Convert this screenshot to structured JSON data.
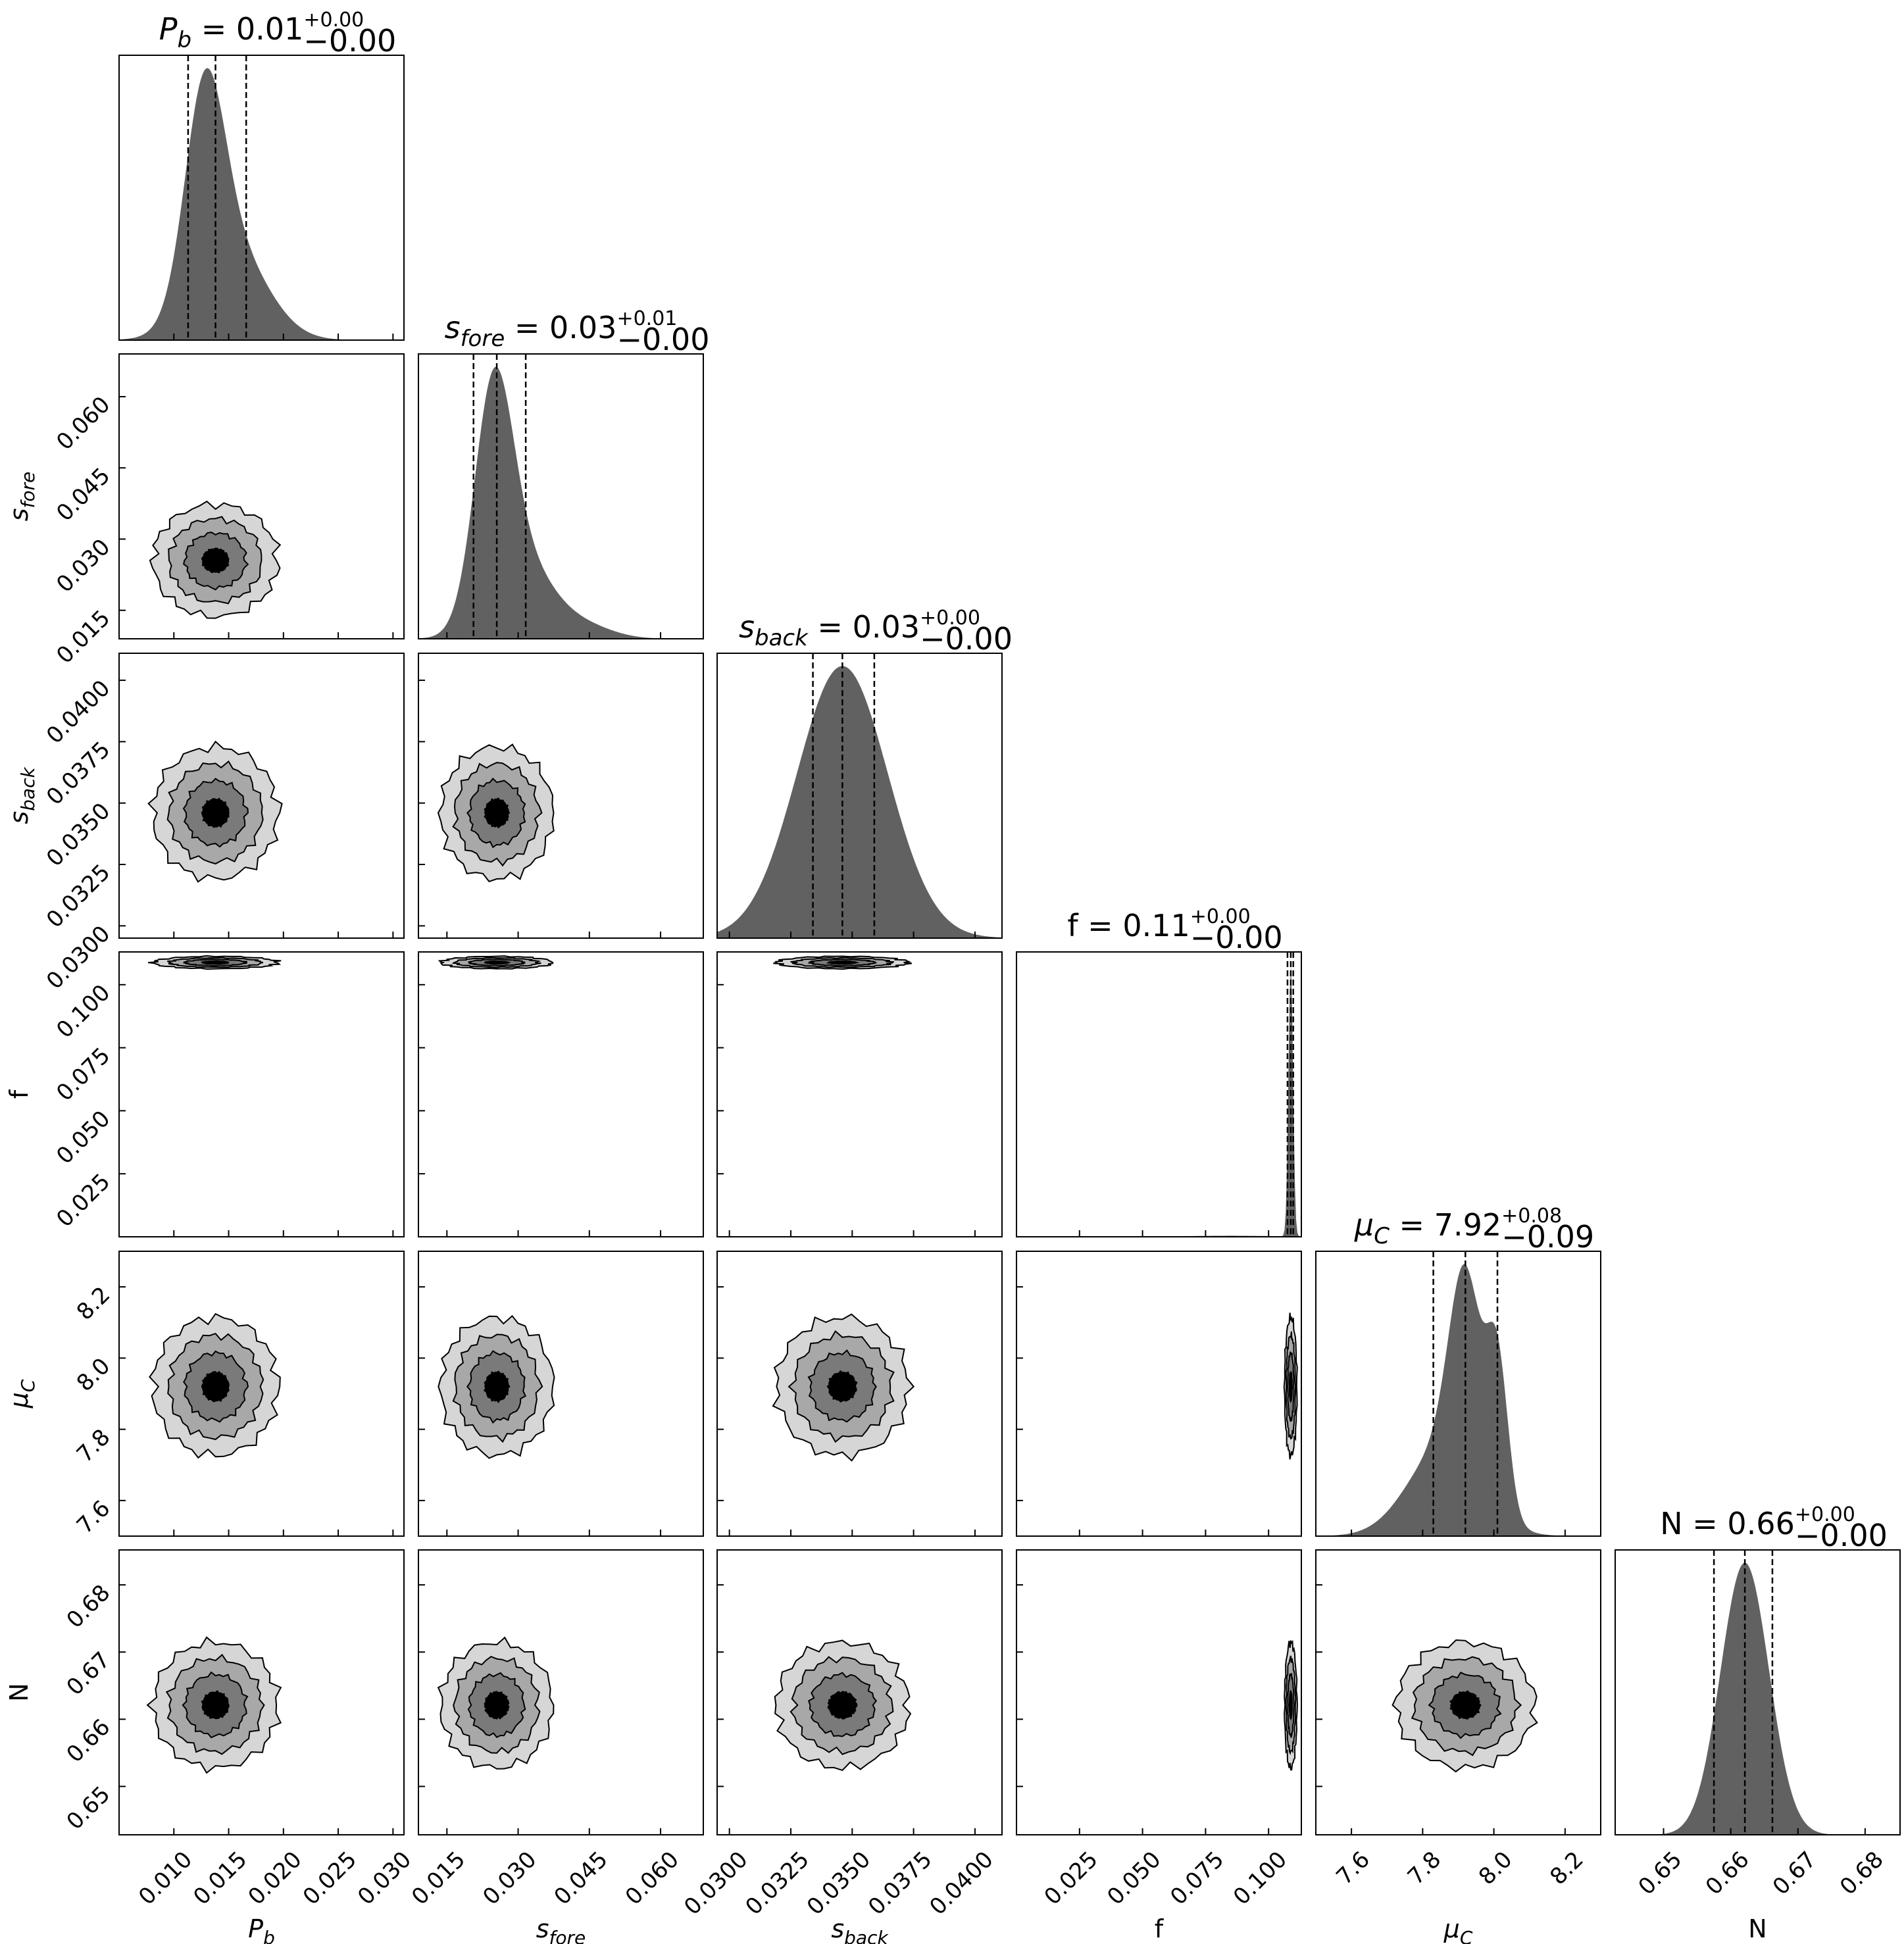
{
  "chart_data": {
    "type": "corner",
    "colors": {
      "hist_fill": "#616161",
      "contour_levels": [
        "#d6d6d6",
        "#a8a8a8",
        "#7a7a7a",
        "#000000"
      ],
      "quantile_line": "#000000"
    },
    "params": [
      {
        "key": "Pb",
        "label_base": "P",
        "label_sub": "b",
        "title_base": "P",
        "title_sub": "b",
        "title_value": "0.01",
        "title_plus": "+0.00",
        "title_minus": "−0.00",
        "range": [
          0.005,
          0.031
        ],
        "median": 0.0138,
        "q16": 0.0113,
        "q84": 0.0166,
        "ticks": [
          0.01,
          0.015,
          0.02,
          0.025,
          0.03
        ],
        "tick_labels": [
          "0.010",
          "0.015",
          "0.020",
          "0.025",
          "0.030"
        ]
      },
      {
        "key": "sfore",
        "label_base": "s",
        "label_sub": "fore",
        "title_base": "s",
        "title_sub": "fore",
        "title_value": "0.03",
        "title_plus": "+0.01",
        "title_minus": "−0.00",
        "range": [
          0.009,
          0.069
        ],
        "median": 0.0255,
        "q16": 0.0206,
        "q84": 0.0316,
        "ticks": [
          0.015,
          0.03,
          0.045,
          0.06
        ],
        "tick_labels": [
          "0.015",
          "0.030",
          "0.045",
          "0.060"
        ]
      },
      {
        "key": "sback",
        "label_base": "s",
        "label_sub": "back",
        "title_base": "s",
        "title_sub": "back",
        "title_value": "0.03",
        "title_plus": "+0.00",
        "title_minus": "−0.00",
        "range": [
          0.0295,
          0.0411
        ],
        "median": 0.0346,
        "q16": 0.0334,
        "q84": 0.0359,
        "ticks": [
          0.03,
          0.0325,
          0.035,
          0.0375,
          0.04
        ],
        "tick_labels": [
          "0.0300",
          "0.0325",
          "0.0350",
          "0.0375",
          "0.0400"
        ]
      },
      {
        "key": "f",
        "label_base": "f",
        "label_sub": "",
        "title_base": "f",
        "title_sub": "",
        "title_value": "0.11",
        "title_plus": "+0.00",
        "title_minus": "−0.00",
        "range": [
          0.0,
          0.113
        ],
        "median": 0.1088,
        "q16": 0.1075,
        "q84": 0.1098,
        "ticks": [
          0.025,
          0.05,
          0.075,
          0.1
        ],
        "tick_labels": [
          "0.025",
          "0.050",
          "0.075",
          "0.100"
        ]
      },
      {
        "key": "muC",
        "label_base": "μ",
        "label_sub": "C",
        "title_base": "μ",
        "title_sub": "C",
        "title_value": "7.92",
        "title_plus": "+0.08",
        "title_minus": "−0.09",
        "range": [
          7.5,
          8.3
        ],
        "median": 7.92,
        "q16": 7.83,
        "q84": 8.01,
        "ticks": [
          7.6,
          7.8,
          8.0,
          8.2
        ],
        "tick_labels": [
          "7.6",
          "7.8",
          "8.0",
          "8.2"
        ]
      },
      {
        "key": "N",
        "label_base": "N",
        "label_sub": "",
        "title_base": "N",
        "title_sub": "",
        "title_value": "0.66",
        "title_plus": "+0.00",
        "title_minus": "−0.00",
        "range": [
          0.6428,
          0.6852
        ],
        "median": 0.6621,
        "q16": 0.6575,
        "q84": 0.6662,
        "ticks": [
          0.65,
          0.66,
          0.67,
          0.68
        ],
        "tick_labels": [
          "0.65",
          "0.66",
          "0.67",
          "0.68"
        ]
      }
    ],
    "histograms": [
      {
        "param": "Pb",
        "components": [
          {
            "mu": 0.0128,
            "sigma": 0.0018,
            "w": 0.55
          },
          {
            "mu": 0.0152,
            "sigma": 0.0032,
            "w": 0.45
          }
        ]
      },
      {
        "param": "sfore",
        "components": [
          {
            "mu": 0.0248,
            "sigma": 0.004,
            "w": 0.6
          },
          {
            "mu": 0.0305,
            "sigma": 0.0065,
            "w": 0.35
          },
          {
            "mu": 0.044,
            "sigma": 0.006,
            "w": 0.05
          }
        ]
      },
      {
        "param": "sback",
        "components": [
          {
            "mu": 0.0346,
            "sigma": 0.00185,
            "w": 1.0
          }
        ]
      },
      {
        "param": "f",
        "components": [
          {
            "mu": 0.1088,
            "sigma": 0.0009,
            "w": 0.93
          },
          {
            "mu": 0.085,
            "sigma": 0.018,
            "w": 0.07
          }
        ]
      },
      {
        "param": "muC",
        "components": [
          {
            "mu": 7.92,
            "sigma": 0.045,
            "w": 0.4
          },
          {
            "mu": 8.01,
            "sigma": 0.03,
            "w": 0.2
          },
          {
            "mu": 7.86,
            "sigma": 0.1,
            "w": 0.4
          }
        ]
      },
      {
        "param": "N",
        "components": [
          {
            "mu": 0.6621,
            "sigma": 0.0036,
            "w": 1.0
          }
        ]
      }
    ]
  }
}
